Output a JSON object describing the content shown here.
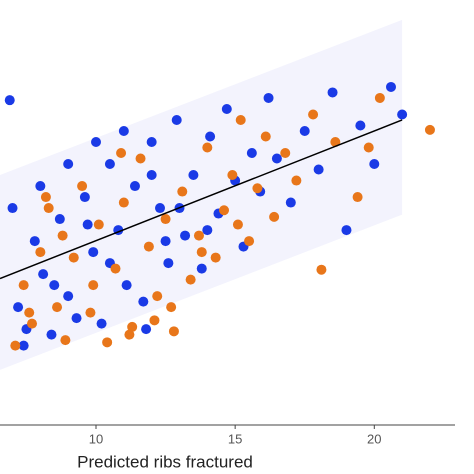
{
  "chart_data": {
    "type": "scatter",
    "x_label": "Predicted ribs fractured",
    "xlim": [
      6.55,
      22.9
    ],
    "ylim": [
      -5.8,
      31.9
    ],
    "xticks": [
      10,
      15,
      20
    ],
    "fit": {
      "x": [
        6.55,
        21
      ],
      "y": [
        6.6,
        21
      ],
      "color": "#000000"
    },
    "interval": {
      "x": [
        6.55,
        21
      ],
      "lower": [
        -1.7,
        12.4
      ],
      "upper": [
        16,
        30.1
      ],
      "color": "#f3f3fd"
    },
    "series": [
      {
        "name": "blue",
        "color": "#1a3ae6",
        "x": [
          6.9,
          7.2,
          7.5,
          7.8,
          8.1,
          8.4,
          8.7,
          9.0,
          9.3,
          9.6,
          9.9,
          10.2,
          10.5,
          10.8,
          11.1,
          11.4,
          11.7,
          12.0,
          12.3,
          12.6,
          12.9,
          13.2,
          13.5,
          13.8,
          14.1,
          14.4,
          14.7,
          15.0,
          15.3,
          15.6,
          15.9,
          16.2,
          16.5,
          17.0,
          17.5,
          18.0,
          18.5,
          19.0,
          19.5,
          20.0,
          20.6,
          21.0,
          7.0,
          8.0,
          9.0,
          10.0,
          11.0,
          12.0,
          13.0,
          14.0,
          8.5,
          10.5,
          12.5,
          7.4,
          9.7,
          11.8
        ],
        "y": [
          22.8,
          4.0,
          2.0,
          10.0,
          7.0,
          1.5,
          12.0,
          5.0,
          3.0,
          14.0,
          9.0,
          2.5,
          17.0,
          11.0,
          6.0,
          15.0,
          4.5,
          19.0,
          13.0,
          8.0,
          21.0,
          10.5,
          16.0,
          7.5,
          19.5,
          12.5,
          22.0,
          15.5,
          9.5,
          18.0,
          14.5,
          23.0,
          17.5,
          13.5,
          20.0,
          16.5,
          23.5,
          11.0,
          20.5,
          17.0,
          24.0,
          21.5,
          13.0,
          15.0,
          17.0,
          19.0,
          20.0,
          16.0,
          13.0,
          11.0,
          6.0,
          8.0,
          10.0,
          0.5,
          11.5,
          2.0
        ]
      },
      {
        "name": "orange",
        "color": "#e8761a",
        "x": [
          7.1,
          7.4,
          7.7,
          8.0,
          8.3,
          8.6,
          8.9,
          9.2,
          9.5,
          9.8,
          10.1,
          10.4,
          10.7,
          11.0,
          11.3,
          11.6,
          11.9,
          12.2,
          12.5,
          12.8,
          13.1,
          13.4,
          13.7,
          14.0,
          14.3,
          14.6,
          14.9,
          15.2,
          15.5,
          15.8,
          16.1,
          16.4,
          16.8,
          17.2,
          17.8,
          18.1,
          18.6,
          19.4,
          19.8,
          20.2,
          22.0,
          7.6,
          8.8,
          9.9,
          11.2,
          12.7,
          13.8,
          15.1,
          8.2,
          10.9,
          12.1
        ],
        "y": [
          0.5,
          6.0,
          2.5,
          9.0,
          13.0,
          4.0,
          1.0,
          8.5,
          15.0,
          3.5,
          11.5,
          0.8,
          7.5,
          13.5,
          2.2,
          17.5,
          9.5,
          5.0,
          12.0,
          1.8,
          14.5,
          6.5,
          10.5,
          18.5,
          8.5,
          12.8,
          16.0,
          21.0,
          10.0,
          14.8,
          19.5,
          12.2,
          18.0,
          15.5,
          21.5,
          7.4,
          19.0,
          14.0,
          18.5,
          23.0,
          20.1,
          3.5,
          10.5,
          6.0,
          1.5,
          4.0,
          9.0,
          11.5,
          14.0,
          18.0,
          2.8
        ]
      }
    ]
  }
}
